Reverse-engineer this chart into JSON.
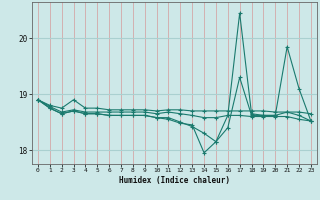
{
  "xlabel": "Humidex (Indice chaleur)",
  "background_color": "#cde8e8",
  "line_color": "#1a7a6e",
  "grid_color_v": "#d4a8a8",
  "grid_color_h": "#aad0d0",
  "xlim": [
    -0.5,
    23.5
  ],
  "ylim": [
    17.75,
    20.65
  ],
  "yticks": [
    18,
    19,
    20
  ],
  "xticks": [
    0,
    1,
    2,
    3,
    4,
    5,
    6,
    7,
    8,
    9,
    10,
    11,
    12,
    13,
    14,
    15,
    16,
    17,
    18,
    19,
    20,
    21,
    22,
    23
  ],
  "series": [
    [
      18.9,
      18.8,
      18.75,
      18.9,
      18.75,
      18.75,
      18.72,
      18.72,
      18.72,
      18.72,
      18.7,
      18.72,
      18.72,
      18.7,
      18.7,
      18.7,
      18.7,
      18.7,
      18.7,
      18.7,
      18.68,
      18.68,
      18.68,
      18.65
    ],
    [
      18.9,
      18.78,
      18.68,
      18.72,
      18.68,
      18.68,
      18.68,
      18.68,
      18.68,
      18.68,
      18.65,
      18.68,
      18.65,
      18.62,
      18.58,
      18.58,
      18.62,
      18.62,
      18.6,
      18.6,
      18.6,
      18.6,
      18.55,
      18.52
    ],
    [
      18.9,
      18.75,
      18.65,
      18.7,
      18.65,
      18.65,
      18.62,
      18.62,
      18.62,
      18.62,
      18.58,
      18.58,
      18.5,
      18.42,
      18.3,
      18.15,
      18.4,
      19.3,
      18.62,
      18.62,
      18.62,
      19.85,
      19.1,
      18.52
    ],
    [
      18.9,
      18.75,
      18.65,
      18.7,
      18.65,
      18.65,
      18.62,
      18.62,
      18.62,
      18.62,
      18.58,
      18.55,
      18.48,
      18.45,
      17.95,
      18.15,
      18.62,
      20.45,
      18.65,
      18.62,
      18.62,
      18.68,
      18.62,
      18.52
    ]
  ]
}
